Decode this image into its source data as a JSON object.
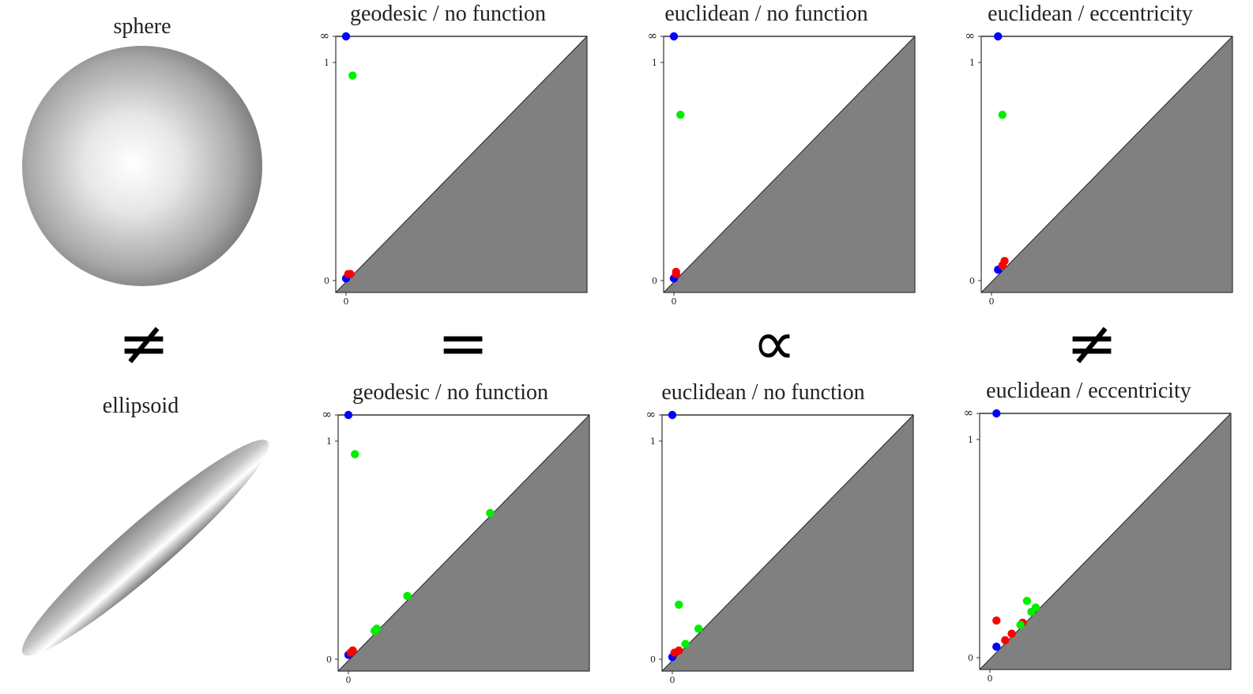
{
  "shapes": {
    "top": {
      "label": "sphere",
      "icon": "sphere-icon"
    },
    "bottom": {
      "label": "ellipsoid",
      "icon": "ellipsoid-icon"
    }
  },
  "relations": [
    "≠",
    "=",
    "∝",
    "≠"
  ],
  "axis_labels": {
    "inf": "∞",
    "one": "1",
    "zero": "0"
  },
  "colors": {
    "dim0": "#0000ff",
    "dim1": "#ff0000",
    "dim2": "#00ee00",
    "below_diagonal": "#808080"
  },
  "chart_data": [
    {
      "type": "scatter",
      "title": "geodesic / no function",
      "row": "sphere",
      "series": [
        {
          "color": "#0000ff",
          "points": [
            [
              0.0,
              0.01
            ],
            [
              0.0,
              "inf"
            ]
          ]
        },
        {
          "color": "#ff0000",
          "points": [
            [
              0.01,
              0.03
            ],
            [
              0.02,
              0.03
            ]
          ]
        },
        {
          "color": "#00ee00",
          "points": [
            [
              0.03,
              0.94
            ]
          ]
        }
      ]
    },
    {
      "type": "scatter",
      "title": "euclidean / no function",
      "row": "sphere",
      "series": [
        {
          "color": "#0000ff",
          "points": [
            [
              0.0,
              0.01
            ],
            [
              0.0,
              "inf"
            ]
          ]
        },
        {
          "color": "#ff0000",
          "points": [
            [
              0.01,
              0.03
            ],
            [
              0.01,
              0.04
            ]
          ]
        },
        {
          "color": "#00ee00",
          "points": [
            [
              0.03,
              0.76
            ]
          ]
        }
      ]
    },
    {
      "type": "scatter",
      "title": "euclidean / eccentricity",
      "row": "sphere",
      "series": [
        {
          "color": "#0000ff",
          "points": [
            [
              0.03,
              0.05
            ],
            [
              0.03,
              "inf"
            ]
          ]
        },
        {
          "color": "#ff0000",
          "points": [
            [
              0.05,
              0.07
            ],
            [
              0.06,
              0.09
            ]
          ]
        },
        {
          "color": "#00ee00",
          "points": [
            [
              0.05,
              0.76
            ]
          ]
        }
      ]
    },
    {
      "type": "scatter",
      "title": "geodesic / no function",
      "row": "ellipsoid",
      "series": [
        {
          "color": "#0000ff",
          "points": [
            [
              0.0,
              0.02
            ],
            [
              0.0,
              "inf"
            ]
          ]
        },
        {
          "color": "#ff0000",
          "points": [
            [
              0.01,
              0.03
            ],
            [
              0.02,
              0.04
            ]
          ]
        },
        {
          "color": "#00ee00",
          "points": [
            [
              0.03,
              0.94
            ],
            [
              0.12,
              0.13
            ],
            [
              0.13,
              0.14
            ],
            [
              0.27,
              0.29
            ],
            [
              0.65,
              0.67
            ]
          ]
        }
      ]
    },
    {
      "type": "scatter",
      "title": "euclidean / no function",
      "row": "ellipsoid",
      "series": [
        {
          "color": "#0000ff",
          "points": [
            [
              0.0,
              0.01
            ],
            [
              0.0,
              "inf"
            ]
          ]
        },
        {
          "color": "#ff0000",
          "points": [
            [
              0.01,
              0.03
            ],
            [
              0.03,
              0.04
            ]
          ]
        },
        {
          "color": "#00ee00",
          "points": [
            [
              0.03,
              0.25
            ],
            [
              0.06,
              0.07
            ],
            [
              0.12,
              0.14
            ]
          ]
        }
      ]
    },
    {
      "type": "scatter",
      "title": "euclidean / eccentricity",
      "row": "ellipsoid",
      "series": [
        {
          "color": "#0000ff",
          "points": [
            [
              0.03,
              0.05
            ],
            [
              0.03,
              "inf"
            ]
          ]
        },
        {
          "color": "#ff0000",
          "points": [
            [
              0.03,
              0.17
            ],
            [
              0.07,
              0.08
            ],
            [
              0.1,
              0.11
            ],
            [
              0.15,
              0.16
            ]
          ]
        },
        {
          "color": "#00ee00",
          "points": [
            [
              0.19,
              0.21
            ],
            [
              0.21,
              0.23
            ],
            [
              0.14,
              0.15
            ],
            [
              0.17,
              0.26
            ]
          ]
        }
      ]
    }
  ]
}
